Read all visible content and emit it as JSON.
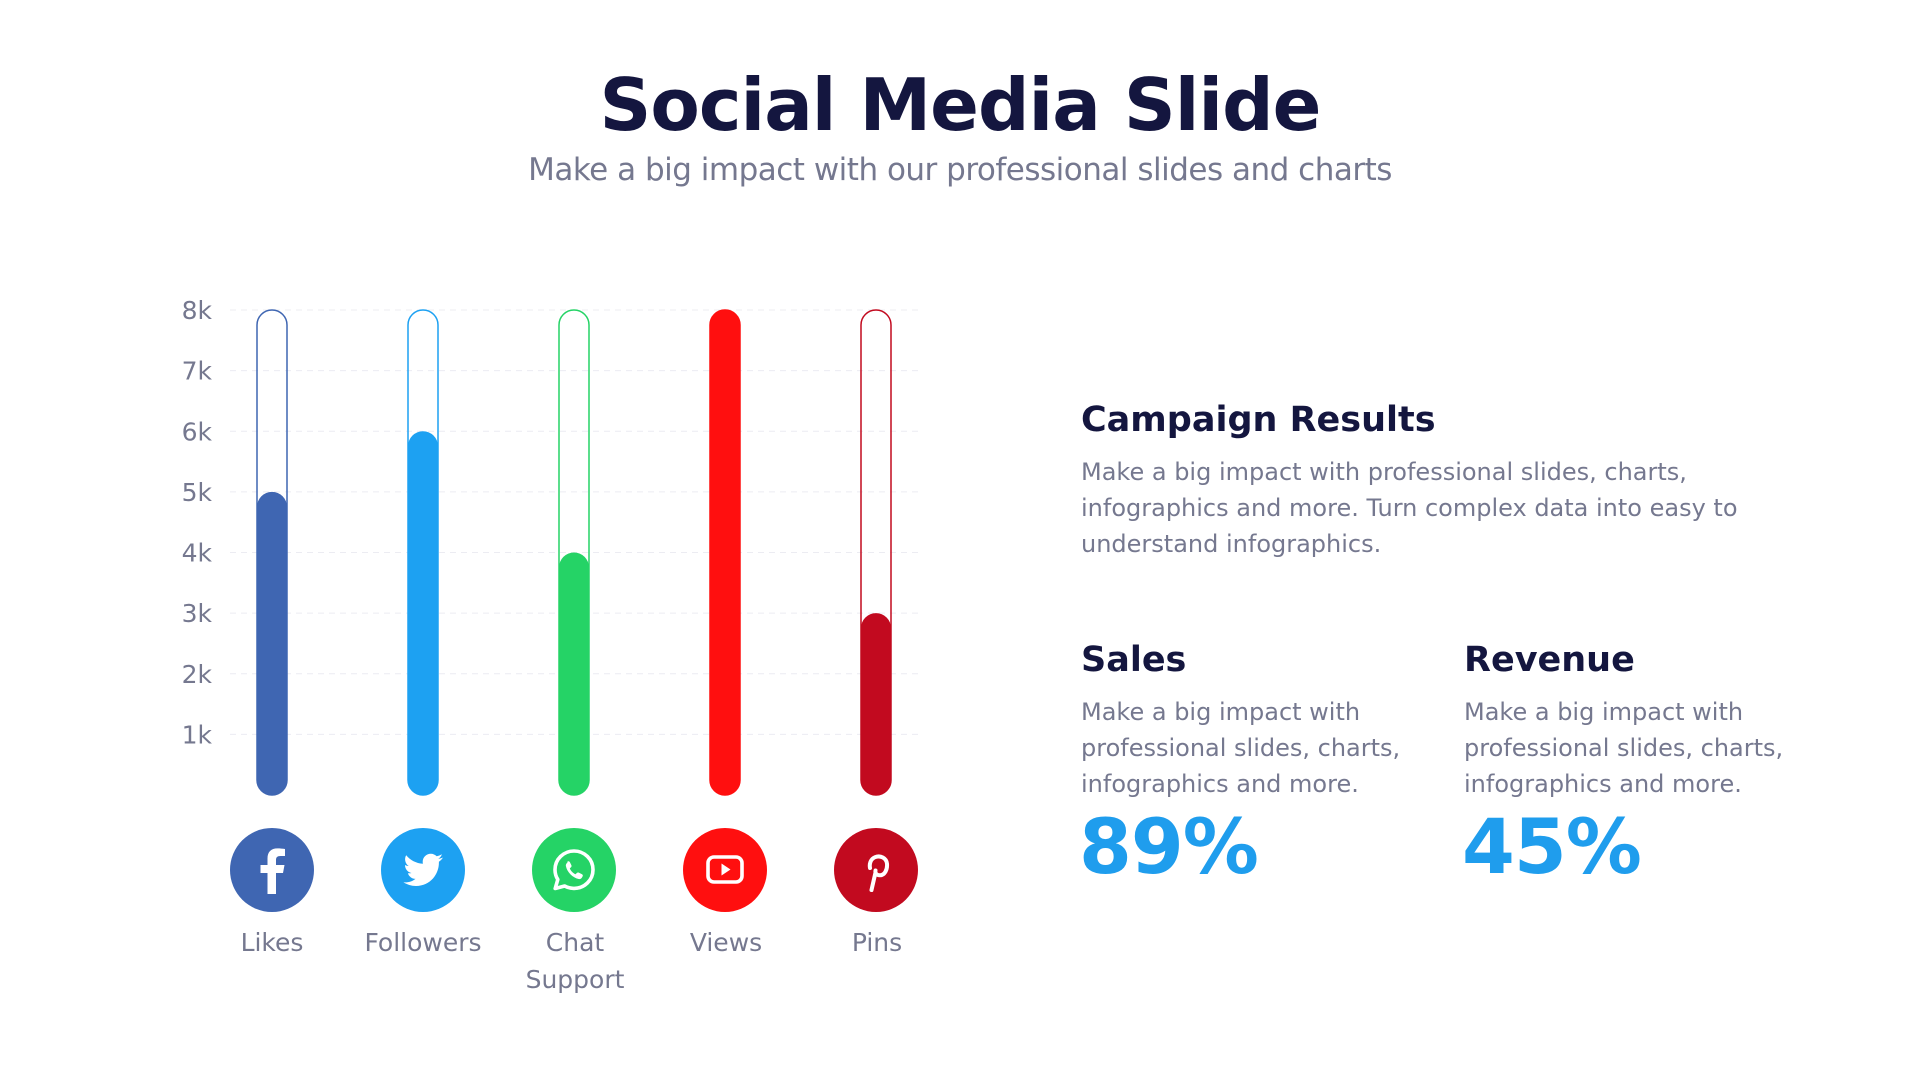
{
  "header": {
    "title": "Social Media Slide",
    "subtitle": "Make a big impact with our professional slides and charts"
  },
  "chart_data": {
    "type": "bar",
    "categories": [
      "Likes",
      "Followers",
      "Chat Support",
      "Views",
      "Pins"
    ],
    "values": [
      5000,
      6000,
      4000,
      8000,
      3000
    ],
    "ylim": [
      0,
      8000
    ],
    "y_ticks": [
      "1k",
      "2k",
      "3k",
      "4k",
      "5k",
      "6k",
      "7k",
      "8k"
    ],
    "y_tick_values": [
      1000,
      2000,
      3000,
      4000,
      5000,
      6000,
      7000,
      8000
    ],
    "colors": [
      "#3f66b2",
      "#1da1f2",
      "#25d366",
      "#ff0f0f",
      "#c20a1f"
    ],
    "grid": true
  },
  "icons": [
    "facebook-icon",
    "twitter-icon",
    "whatsapp-icon",
    "youtube-icon",
    "pinterest-icon"
  ],
  "campaign": {
    "title": "Campaign Results",
    "text": "Make a big impact with professional slides, charts, infographics and more. Turn complex data into easy to understand infographics."
  },
  "sales": {
    "title": "Sales",
    "text": "Make a big impact with professional slides, charts, infographics and more.",
    "value": "89%"
  },
  "revenue": {
    "title": "Revenue",
    "text": "Make a big impact with professional slides, charts, infographics and more.",
    "value": "45%"
  }
}
